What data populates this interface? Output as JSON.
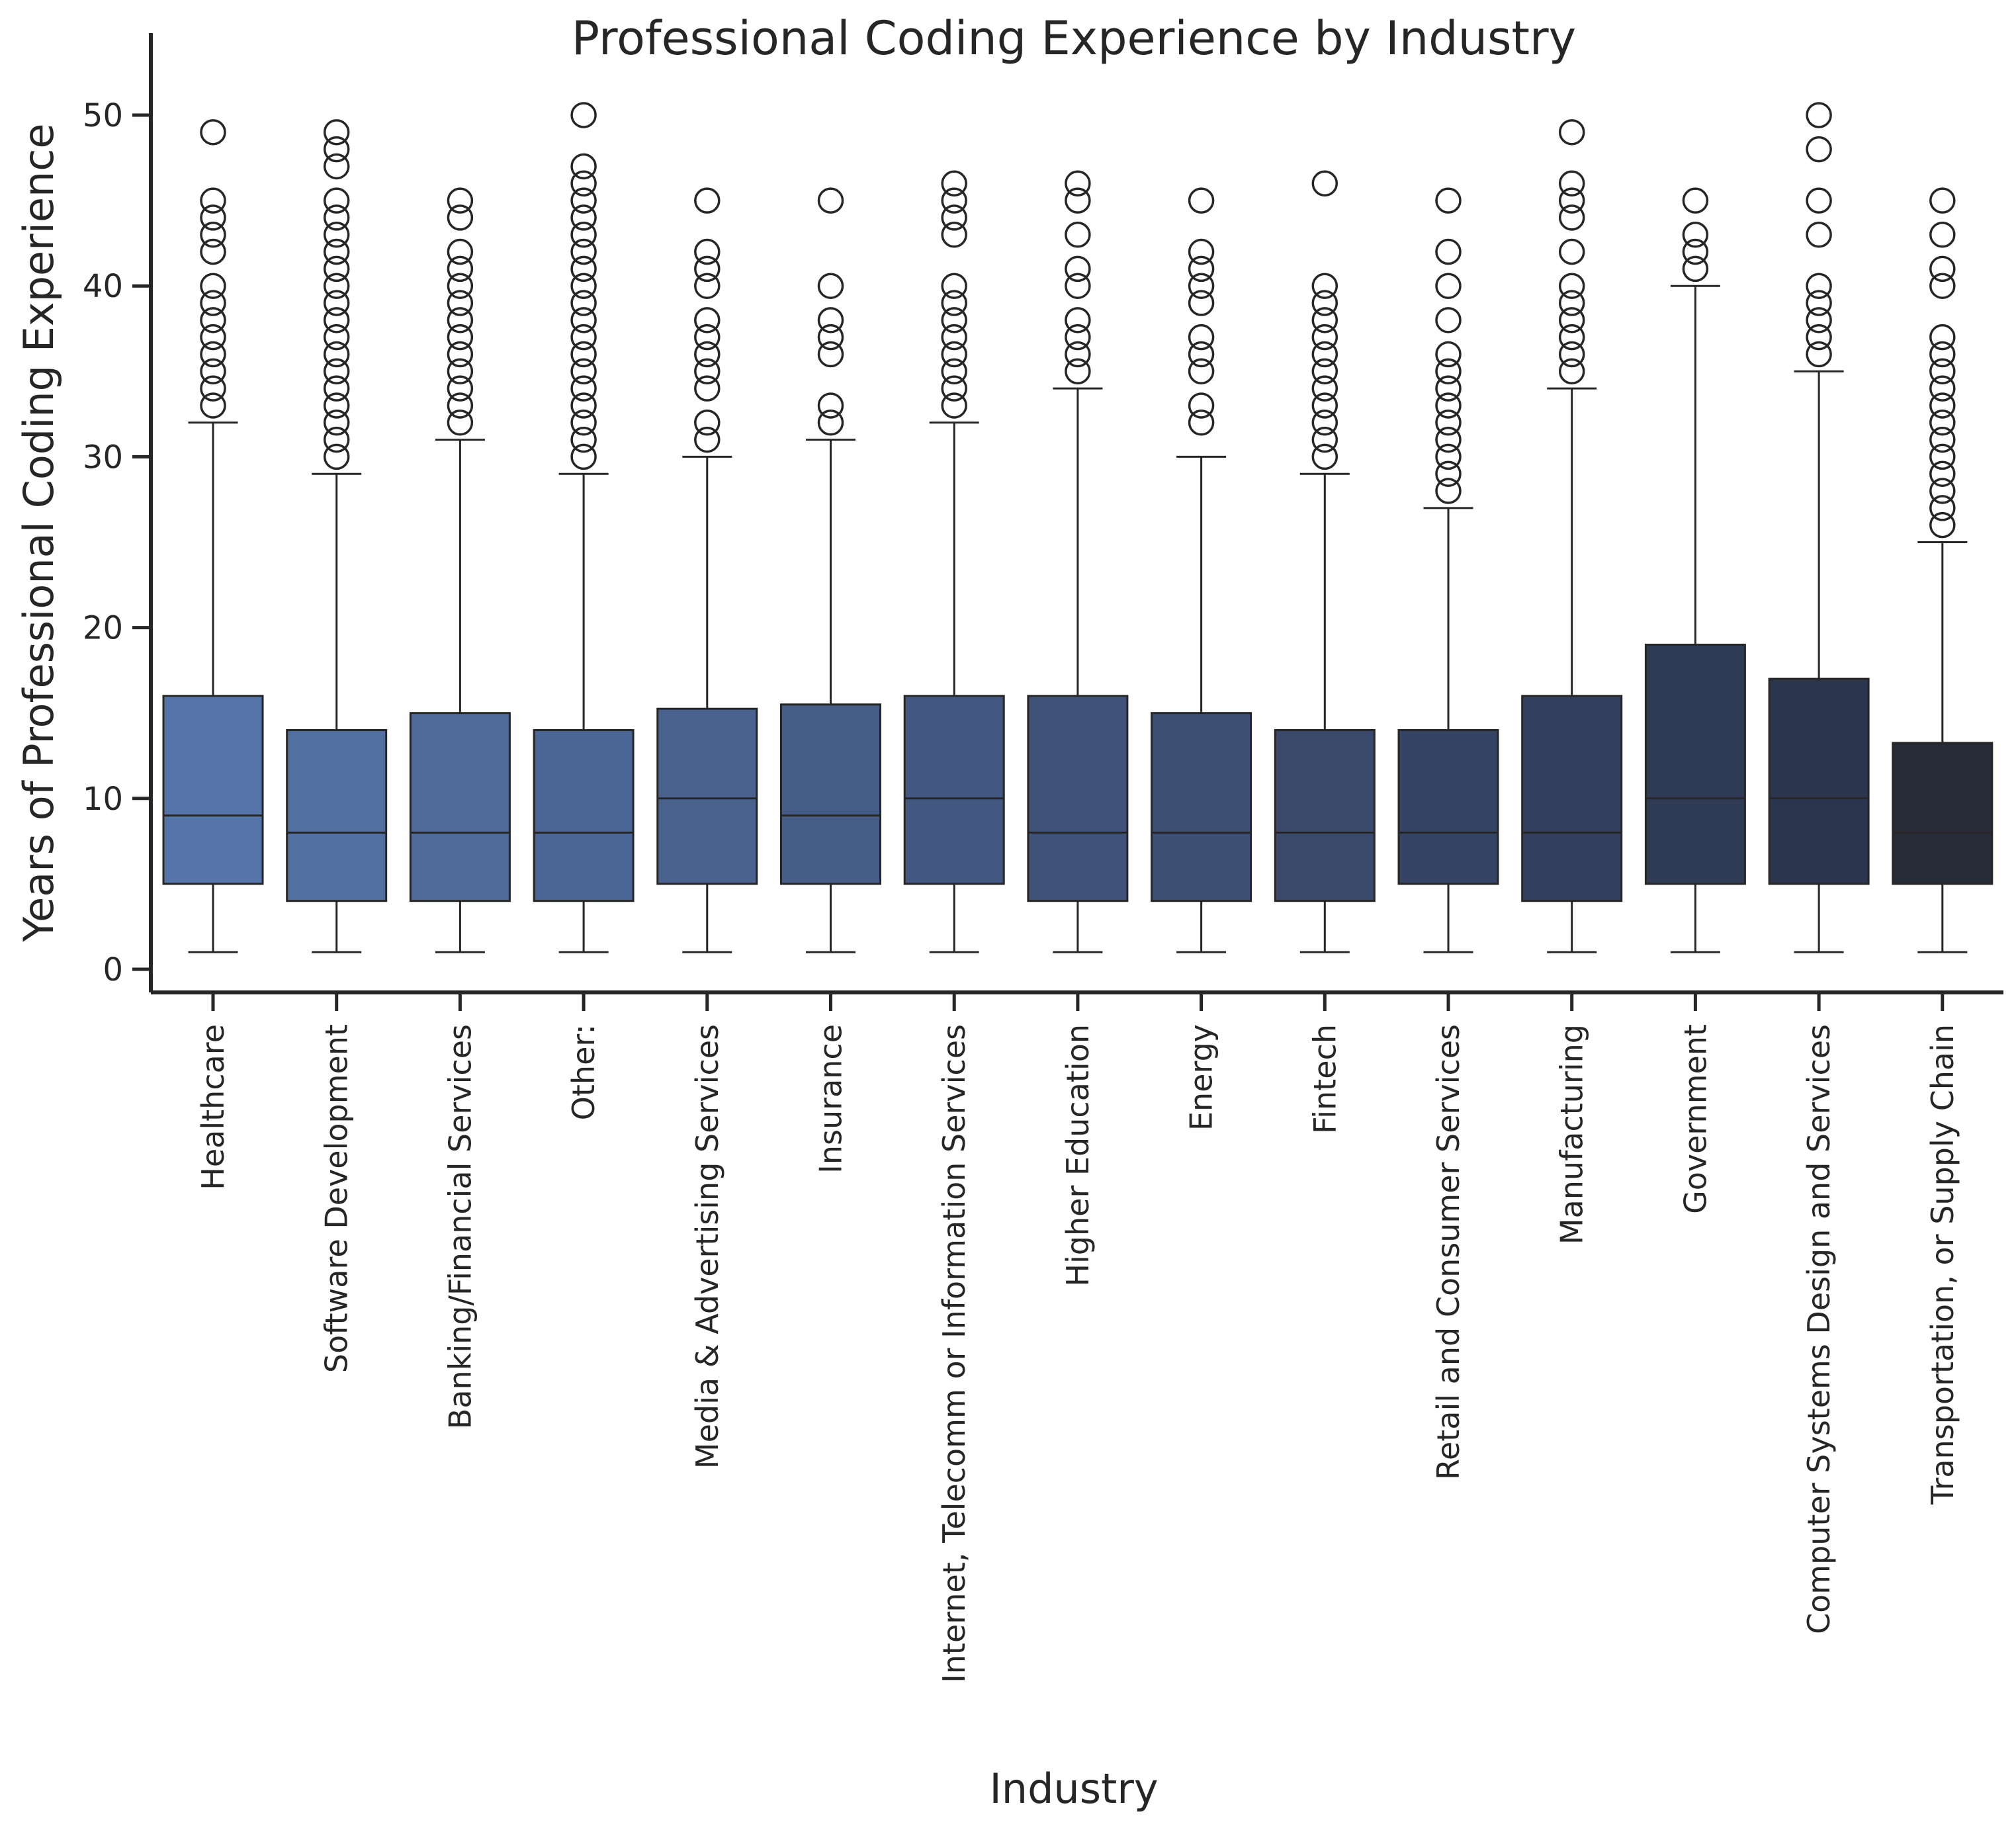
{
  "chart_data": {
    "type": "box",
    "title": "Professional Coding Experience by Industry",
    "xlabel": "Industry",
    "ylabel": "Years of Professional Coding Experience",
    "ylim": [
      -1.5,
      52.5
    ],
    "yticks": [
      0,
      10,
      20,
      30,
      40,
      50
    ],
    "grid": false,
    "legend": "none",
    "series": [
      {
        "category": "Healthcare",
        "color": "#5574a7",
        "whisker_low": 1,
        "q1": 5,
        "median": 9,
        "q3": 16,
        "whisker_high": 32,
        "outliers": [
          33,
          34,
          35,
          36,
          37,
          38,
          39,
          40,
          42,
          43,
          44,
          45,
          49
        ]
      },
      {
        "category": "Software Development",
        "color": "#5170a1",
        "whisker_low": 1,
        "q1": 4,
        "median": 8,
        "q3": 14,
        "whisker_high": 29,
        "outliers": [
          30,
          31,
          32,
          33,
          34,
          35,
          36,
          37,
          38,
          39,
          40,
          41,
          42,
          43,
          44,
          45,
          47,
          48,
          49
        ]
      },
      {
        "category": "Banking/Financial Services",
        "color": "#4e6b9a",
        "whisker_low": 1,
        "q1": 4,
        "median": 8,
        "q3": 15,
        "whisker_high": 31,
        "outliers": [
          32,
          33,
          34,
          35,
          36,
          37,
          38,
          39,
          40,
          41,
          42,
          44,
          45
        ]
      },
      {
        "category": "Other:",
        "color": "#4b6694",
        "whisker_low": 1,
        "q1": 4,
        "median": 8,
        "q3": 14,
        "whisker_high": 29,
        "outliers": [
          30,
          31,
          32,
          33,
          34,
          35,
          36,
          37,
          38,
          39,
          40,
          41,
          42,
          43,
          44,
          45,
          46,
          47,
          50
        ]
      },
      {
        "category": "Media & Advertising Services",
        "color": "#48618d",
        "whisker_low": 1,
        "q1": 5,
        "median": 10,
        "q3": 15.25,
        "whisker_high": 30,
        "outliers": [
          31,
          32,
          34,
          35,
          36,
          37,
          38,
          40,
          41,
          42,
          45
        ]
      },
      {
        "category": "Insurance",
        "color": "#455d87",
        "whisker_low": 1,
        "q1": 5,
        "median": 9,
        "q3": 15.5,
        "whisker_high": 31,
        "outliers": [
          32,
          33,
          36,
          37,
          38,
          40,
          45
        ]
      },
      {
        "category": "Internet, Telecomm or Information Services",
        "color": "#425880",
        "whisker_low": 1,
        "q1": 5,
        "median": 10,
        "q3": 16,
        "whisker_high": 32,
        "outliers": [
          33,
          34,
          35,
          36,
          37,
          38,
          39,
          40,
          43,
          44,
          45,
          46
        ]
      },
      {
        "category": "Higher Education",
        "color": "#3f5379",
        "whisker_low": 1,
        "q1": 4,
        "median": 8,
        "q3": 16,
        "whisker_high": 34,
        "outliers": [
          35,
          36,
          37,
          38,
          40,
          41,
          43,
          45,
          46
        ]
      },
      {
        "category": "Energy",
        "color": "#3c4e72",
        "whisker_low": 1,
        "q1": 4,
        "median": 8,
        "q3": 15,
        "whisker_high": 30,
        "outliers": [
          32,
          33,
          35,
          36,
          37,
          39,
          40,
          41,
          42,
          45
        ]
      },
      {
        "category": "Fintech",
        "color": "#38496b",
        "whisker_low": 1,
        "q1": 4,
        "median": 8,
        "q3": 14,
        "whisker_high": 29,
        "outliers": [
          30,
          31,
          32,
          33,
          34,
          35,
          36,
          37,
          38,
          39,
          40,
          46
        ]
      },
      {
        "category": "Retail and Consumer Services",
        "color": "#354464",
        "whisker_low": 1,
        "q1": 5,
        "median": 8,
        "q3": 14,
        "whisker_high": 27,
        "outliers": [
          28,
          29,
          30,
          31,
          32,
          33,
          34,
          35,
          36,
          38,
          40,
          42,
          45
        ]
      },
      {
        "category": "Manufacturing",
        "color": "#323f5d",
        "whisker_low": 1,
        "q1": 4,
        "median": 8,
        "q3": 16,
        "whisker_high": 34,
        "outliers": [
          35,
          36,
          37,
          38,
          39,
          40,
          42,
          44,
          45,
          46,
          49
        ]
      },
      {
        "category": "Government",
        "color": "#2f3a55",
        "whisker_low": 1,
        "q1": 5,
        "median": 10,
        "q3": 19,
        "whisker_high": 40,
        "outliers": [
          41,
          42,
          43,
          45
        ]
      },
      {
        "category": "Computer Systems Design and Services",
        "color": "#2b354d",
        "whisker_low": 1,
        "q1": 5,
        "median": 10,
        "q3": 17,
        "whisker_high": 35,
        "outliers": [
          36,
          37,
          38,
          39,
          40,
          43,
          45,
          48,
          50
        ]
      },
      {
        "category": "Transportation, or Supply Chain",
        "color": "#262b38",
        "whisker_low": 1,
        "q1": 5,
        "median": 8,
        "q3": 13.25,
        "whisker_high": 25,
        "outliers": [
          26,
          27,
          28,
          29,
          30,
          31,
          32,
          33,
          34,
          35,
          36,
          37,
          40,
          41,
          43,
          45
        ]
      }
    ]
  }
}
